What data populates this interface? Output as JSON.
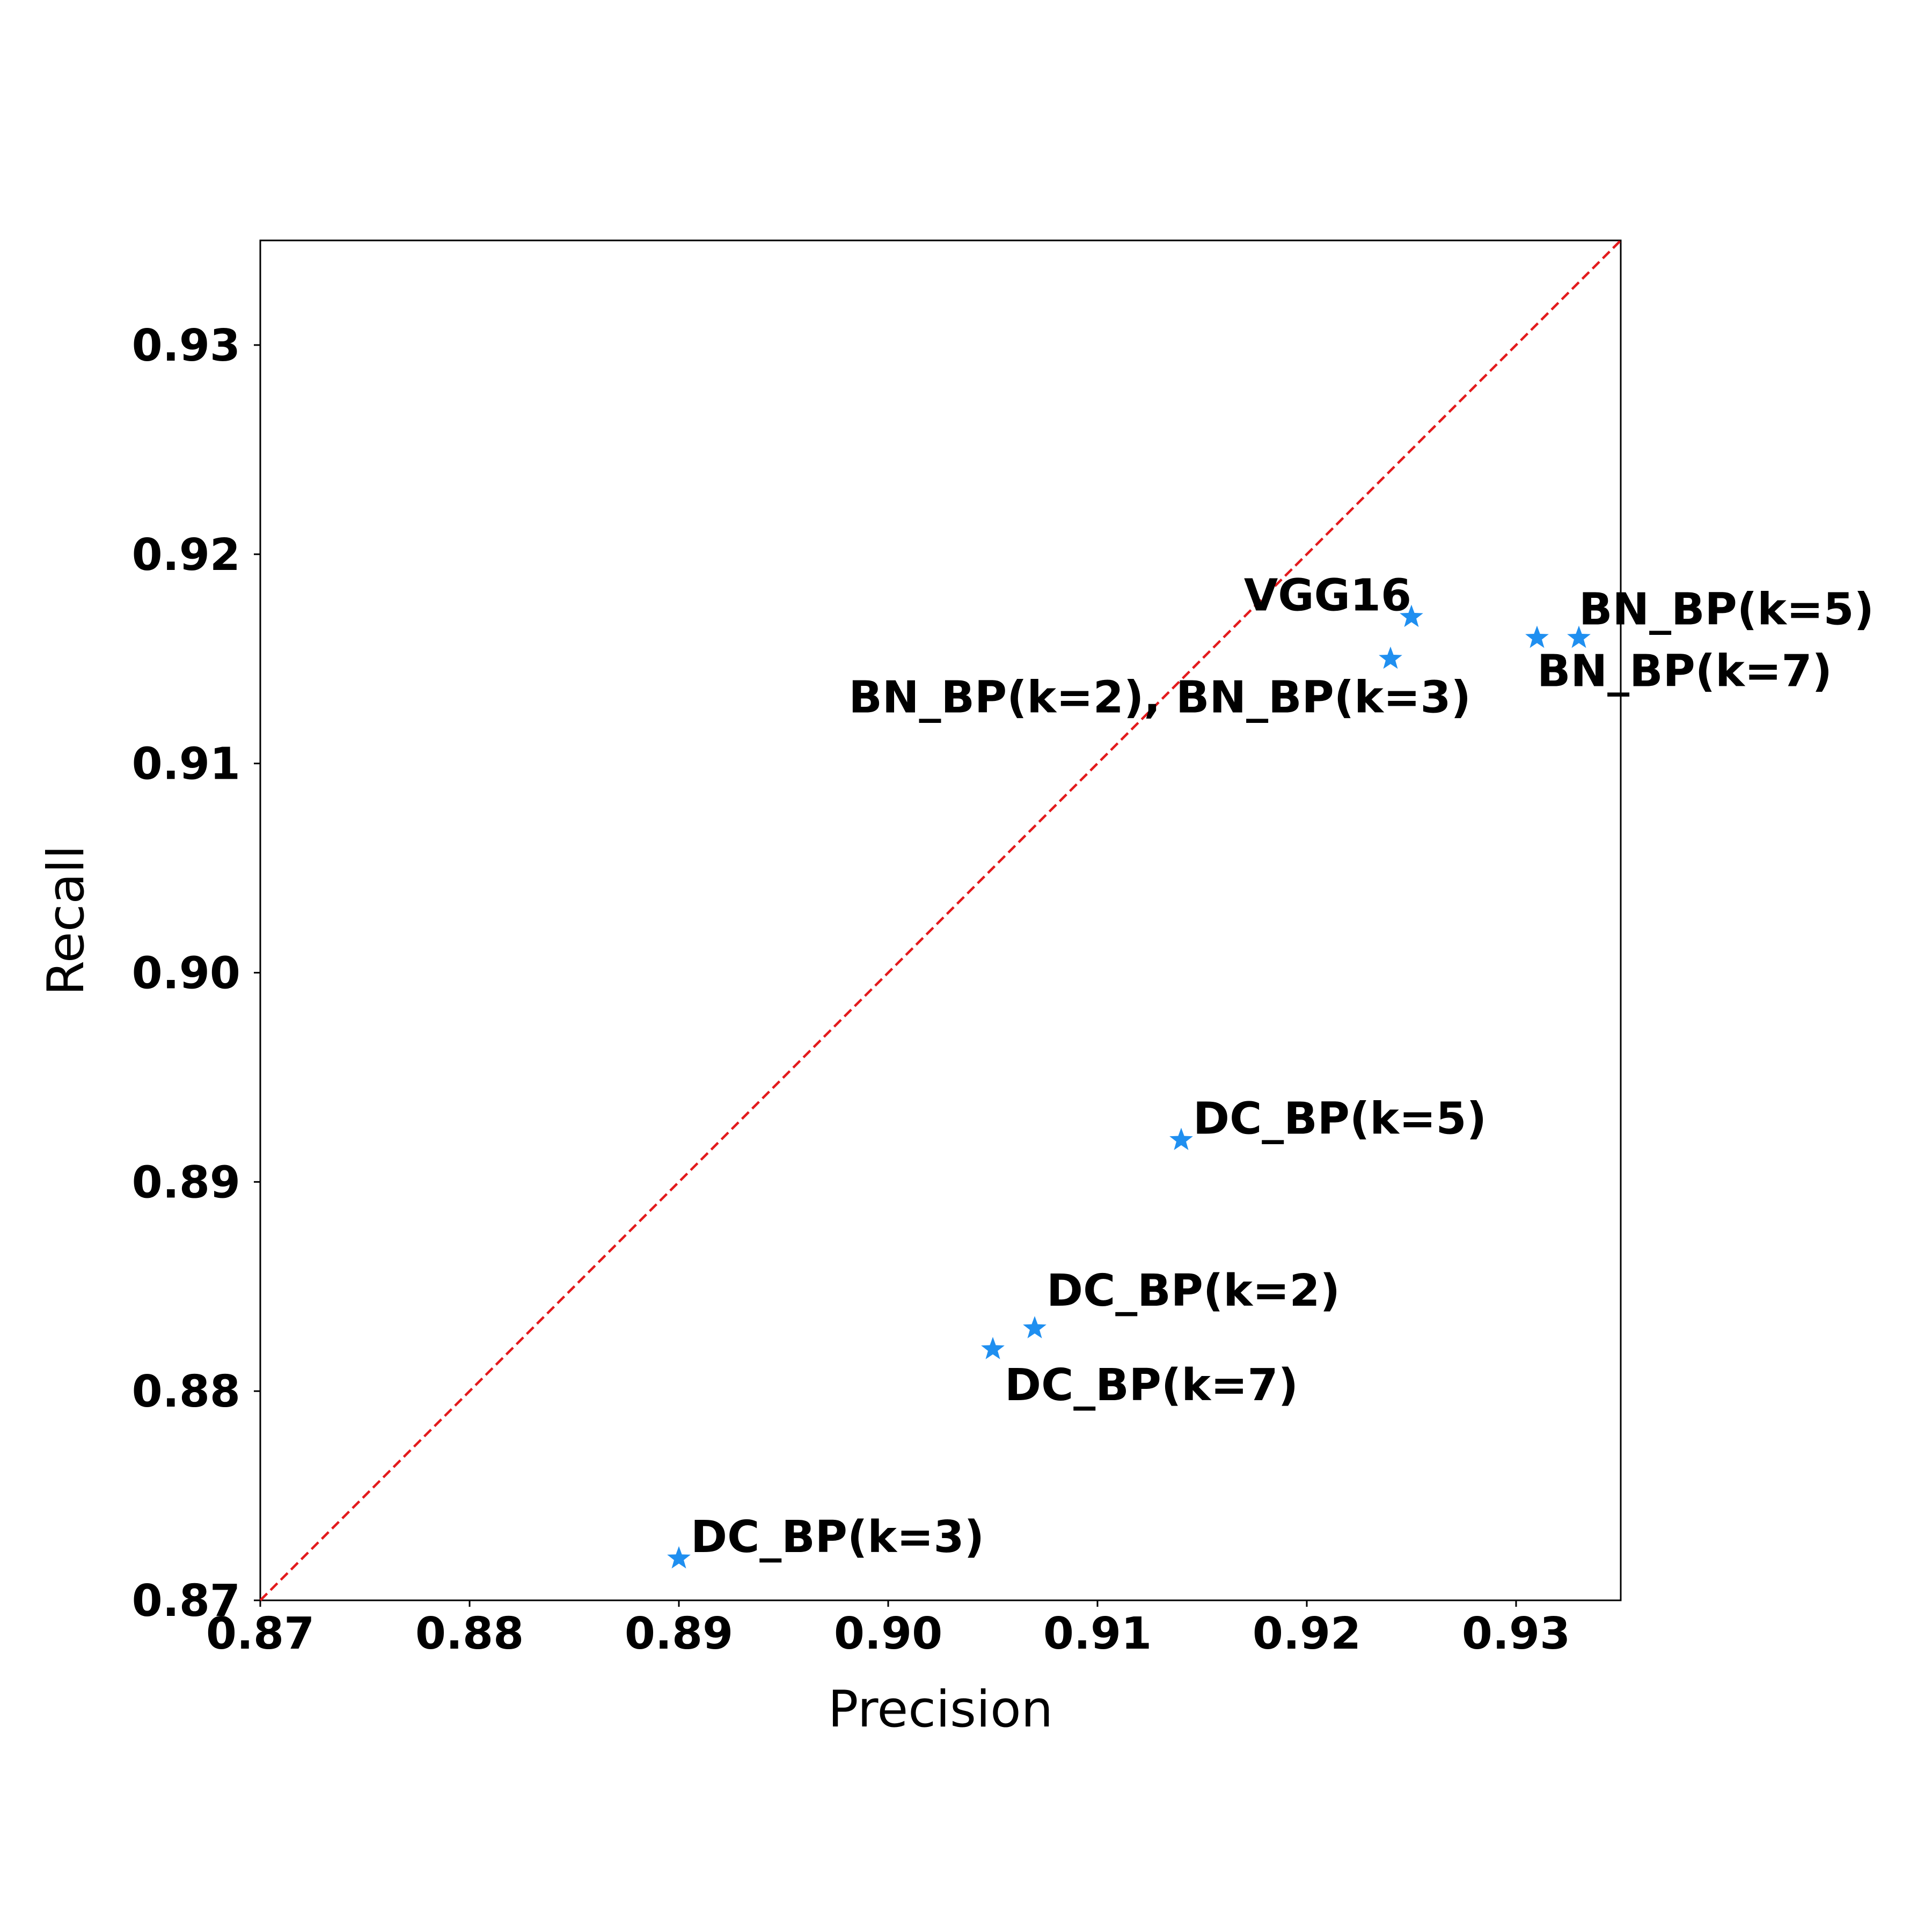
{
  "chart_data": {
    "type": "scatter",
    "title": "",
    "xlabel": "Precision",
    "ylabel": "Recall",
    "xlim": [
      0.87,
      0.935
    ],
    "ylim": [
      0.87,
      0.935
    ],
    "xticks": [
      "0.87",
      "0.88",
      "0.89",
      "0.90",
      "0.91",
      "0.92",
      "0.93"
    ],
    "yticks": [
      "0.87",
      "0.88",
      "0.89",
      "0.90",
      "0.91",
      "0.92",
      "0.93"
    ],
    "grid": false,
    "reference_line": {
      "style": "dashed",
      "color": "#e31a1c",
      "from": [
        0.87,
        0.87
      ],
      "to": [
        0.935,
        0.935
      ]
    },
    "marker": {
      "shape": "star",
      "color": "#1f8ff0"
    },
    "points": [
      {
        "x": 0.925,
        "y": 0.917
      },
      {
        "x": 0.924,
        "y": 0.915
      },
      {
        "x": 0.931,
        "y": 0.916
      },
      {
        "x": 0.933,
        "y": 0.916
      },
      {
        "x": 0.914,
        "y": 0.892
      },
      {
        "x": 0.907,
        "y": 0.883
      },
      {
        "x": 0.905,
        "y": 0.882
      },
      {
        "x": 0.89,
        "y": 0.872
      }
    ],
    "annotations": [
      {
        "text": "VGG16",
        "x": 0.925,
        "y": 0.917
      },
      {
        "text": "BN_BP(k=2), BN_BP(k=3)",
        "x": 0.924,
        "y": 0.915
      },
      {
        "text": "BN_BP(k=5)",
        "x": 0.933,
        "y": 0.916
      },
      {
        "text": "BN_BP(k=7)",
        "x": 0.931,
        "y": 0.916
      },
      {
        "text": "DC_BP(k=5)",
        "x": 0.914,
        "y": 0.892
      },
      {
        "text": "DC_BP(k=2)",
        "x": 0.907,
        "y": 0.883
      },
      {
        "text": "DC_BP(k=7)",
        "x": 0.905,
        "y": 0.882
      },
      {
        "text": "DC_BP(k=3)",
        "x": 0.89,
        "y": 0.872
      }
    ]
  }
}
